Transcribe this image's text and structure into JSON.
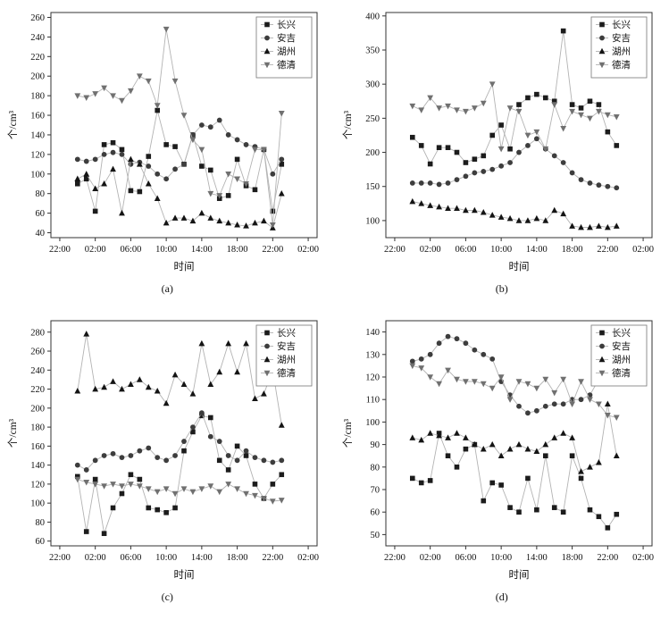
{
  "page": {
    "background": "#ffffff"
  },
  "style": {
    "axis_color": "#333333",
    "line_color": "#b3b3b3",
    "series_colors": [
      "#1c1c1c",
      "#3d3d3d",
      "#141414",
      "#707070"
    ],
    "legend_border": "#777777"
  },
  "chart_data": [
    {
      "id": "a",
      "type": "line",
      "caption": "(a)",
      "xlabel": "时间",
      "ylabel": "个/cm³",
      "xlim": [
        -3,
        27
      ],
      "x_ticks": [
        -2,
        2,
        6,
        10,
        14,
        18,
        22,
        26
      ],
      "x_tick_labels": [
        "22:00",
        "02:00",
        "06:00",
        "10:00",
        "14:00",
        "18:00",
        "22:00",
        "02:00"
      ],
      "ylim": [
        35,
        265
      ],
      "y_ticks": [
        40,
        60,
        80,
        100,
        120,
        140,
        160,
        180,
        200,
        220,
        240,
        260
      ],
      "legend_position": "top-right",
      "grid": false,
      "x": [
        0,
        1,
        2,
        3,
        4,
        5,
        6,
        7,
        8,
        9,
        10,
        11,
        12,
        13,
        14,
        15,
        16,
        17,
        18,
        19,
        20,
        21,
        22,
        23
      ],
      "series": [
        {
          "name": "长兴",
          "marker": "square",
          "values": [
            90,
            95,
            62,
            130,
            132,
            125,
            83,
            82,
            118,
            165,
            130,
            128,
            110,
            140,
            108,
            104,
            75,
            78,
            115,
            88,
            84,
            125,
            62,
            110
          ]
        },
        {
          "name": "安吉",
          "marker": "circle",
          "values": [
            115,
            113,
            115,
            120,
            122,
            120,
            110,
            112,
            108,
            100,
            95,
            105,
            110,
            140,
            150,
            148,
            155,
            140,
            135,
            130,
            128,
            125,
            100,
            115
          ]
        },
        {
          "name": "湖州",
          "marker": "triangle-up",
          "values": [
            95,
            100,
            85,
            90,
            105,
            60,
            115,
            110,
            90,
            75,
            50,
            55,
            55,
            52,
            60,
            55,
            52,
            50,
            48,
            47,
            50,
            52,
            45,
            80
          ]
        },
        {
          "name": "德清",
          "marker": "triangle-down",
          "values": [
            180,
            178,
            182,
            188,
            180,
            175,
            185,
            200,
            195,
            170,
            248,
            195,
            160,
            135,
            125,
            80,
            78,
            100,
            95,
            90,
            125,
            125,
            48,
            162
          ]
        }
      ]
    },
    {
      "id": "b",
      "type": "line",
      "caption": "(b)",
      "xlabel": "时间",
      "ylabel": "个/cm³",
      "xlim": [
        -3,
        27
      ],
      "x_ticks": [
        -2,
        2,
        6,
        10,
        14,
        18,
        22,
        26
      ],
      "x_tick_labels": [
        "22:00",
        "02:00",
        "06:00",
        "10:00",
        "14:00",
        "18:00",
        "22:00",
        "02:00"
      ],
      "ylim": [
        75,
        405
      ],
      "y_ticks": [
        100,
        150,
        200,
        250,
        300,
        350,
        400
      ],
      "legend_position": "top-right",
      "grid": false,
      "x": [
        0,
        1,
        2,
        3,
        4,
        5,
        6,
        7,
        8,
        9,
        10,
        11,
        12,
        13,
        14,
        15,
        16,
        17,
        18,
        19,
        20,
        21,
        22,
        23
      ],
      "series": [
        {
          "name": "长兴",
          "marker": "square",
          "values": [
            222,
            210,
            183,
            207,
            207,
            200,
            185,
            190,
            195,
            225,
            240,
            205,
            270,
            280,
            285,
            280,
            275,
            378,
            270,
            265,
            275,
            270,
            230,
            210
          ]
        },
        {
          "name": "安吉",
          "marker": "circle",
          "values": [
            155,
            155,
            155,
            153,
            155,
            160,
            165,
            170,
            172,
            175,
            180,
            185,
            200,
            210,
            220,
            205,
            195,
            185,
            170,
            160,
            155,
            152,
            150,
            148
          ]
        },
        {
          "name": "湖州",
          "marker": "triangle-up",
          "values": [
            128,
            125,
            122,
            120,
            118,
            118,
            115,
            115,
            112,
            108,
            105,
            103,
            100,
            100,
            103,
            100,
            115,
            110,
            92,
            90,
            90,
            92,
            90,
            92
          ]
        },
        {
          "name": "德清",
          "marker": "triangle-down",
          "values": [
            268,
            262,
            280,
            265,
            268,
            262,
            260,
            265,
            272,
            300,
            205,
            265,
            260,
            225,
            230,
            205,
            270,
            235,
            260,
            255,
            250,
            260,
            255,
            252
          ]
        }
      ]
    },
    {
      "id": "c",
      "type": "line",
      "caption": "(c)",
      "xlabel": "时间",
      "ylabel": "个/cm³",
      "xlim": [
        -3,
        27
      ],
      "x_ticks": [
        -2,
        2,
        6,
        10,
        14,
        18,
        22,
        26
      ],
      "x_tick_labels": [
        "22:00",
        "02:00",
        "06:00",
        "10:00",
        "14:00",
        "18:00",
        "22:00",
        "02:00"
      ],
      "ylim": [
        55,
        292
      ],
      "y_ticks": [
        60,
        80,
        100,
        120,
        140,
        160,
        180,
        200,
        220,
        240,
        260,
        280
      ],
      "legend_position": "top-right",
      "grid": false,
      "x": [
        0,
        1,
        2,
        3,
        4,
        5,
        6,
        7,
        8,
        9,
        10,
        11,
        12,
        13,
        14,
        15,
        16,
        17,
        18,
        19,
        20,
        21,
        22,
        23
      ],
      "series": [
        {
          "name": "长兴",
          "marker": "square",
          "values": [
            128,
            70,
            125,
            68,
            95,
            110,
            130,
            125,
            95,
            93,
            90,
            95,
            155,
            175,
            192,
            190,
            145,
            135,
            160,
            150,
            120,
            105,
            120,
            130
          ]
        },
        {
          "name": "安吉",
          "marker": "circle",
          "values": [
            140,
            135,
            145,
            150,
            152,
            148,
            150,
            155,
            158,
            148,
            145,
            150,
            165,
            180,
            195,
            170,
            165,
            150,
            145,
            155,
            148,
            145,
            143,
            145
          ]
        },
        {
          "name": "湖州",
          "marker": "triangle-up",
          "values": [
            218,
            278,
            220,
            222,
            228,
            220,
            225,
            230,
            222,
            218,
            205,
            235,
            225,
            215,
            268,
            225,
            238,
            268,
            238,
            268,
            210,
            215,
            240,
            182
          ]
        },
        {
          "name": "德清",
          "marker": "triangle-down",
          "values": [
            125,
            122,
            120,
            118,
            120,
            118,
            120,
            118,
            115,
            112,
            115,
            110,
            115,
            112,
            115,
            118,
            112,
            120,
            115,
            110,
            108,
            105,
            102,
            103
          ]
        }
      ]
    },
    {
      "id": "d",
      "type": "line",
      "caption": "(d)",
      "xlabel": "时间",
      "ylabel": "个/cm³",
      "xlim": [
        -3,
        27
      ],
      "x_ticks": [
        -2,
        2,
        6,
        10,
        14,
        18,
        22,
        26
      ],
      "x_tick_labels": [
        "22:00",
        "02:00",
        "06:00",
        "10:00",
        "14:00",
        "18:00",
        "22:00",
        "02:00"
      ],
      "ylim": [
        45,
        145
      ],
      "y_ticks": [
        50,
        60,
        70,
        80,
        90,
        100,
        110,
        120,
        130,
        140
      ],
      "legend_position": "top-right",
      "grid": false,
      "x": [
        0,
        1,
        2,
        3,
        4,
        5,
        6,
        7,
        8,
        9,
        10,
        11,
        12,
        13,
        14,
        15,
        16,
        17,
        18,
        19,
        20,
        21,
        22,
        23
      ],
      "series": [
        {
          "name": "长兴",
          "marker": "square",
          "values": [
            75,
            73,
            74,
            95,
            85,
            80,
            88,
            90,
            65,
            73,
            72,
            62,
            60,
            75,
            61,
            85,
            62,
            60,
            85,
            75,
            61,
            58,
            53,
            59
          ]
        },
        {
          "name": "安吉",
          "marker": "circle",
          "values": [
            127,
            128,
            130,
            135,
            138,
            137,
            135,
            132,
            130,
            128,
            118,
            112,
            107,
            104,
            105,
            107,
            108,
            108,
            110,
            110,
            112,
            119,
            119,
            120
          ]
        },
        {
          "name": "湖州",
          "marker": "triangle-up",
          "values": [
            93,
            92,
            95,
            94,
            93,
            95,
            93,
            90,
            88,
            90,
            85,
            88,
            90,
            88,
            87,
            90,
            93,
            95,
            93,
            78,
            80,
            82,
            108,
            85
          ]
        },
        {
          "name": "德清",
          "marker": "triangle-down",
          "values": [
            125,
            124,
            120,
            117,
            123,
            119,
            118,
            118,
            117,
            115,
            120,
            110,
            118,
            117,
            115,
            119,
            113,
            119,
            108,
            118,
            110,
            108,
            103,
            102
          ]
        }
      ]
    }
  ]
}
